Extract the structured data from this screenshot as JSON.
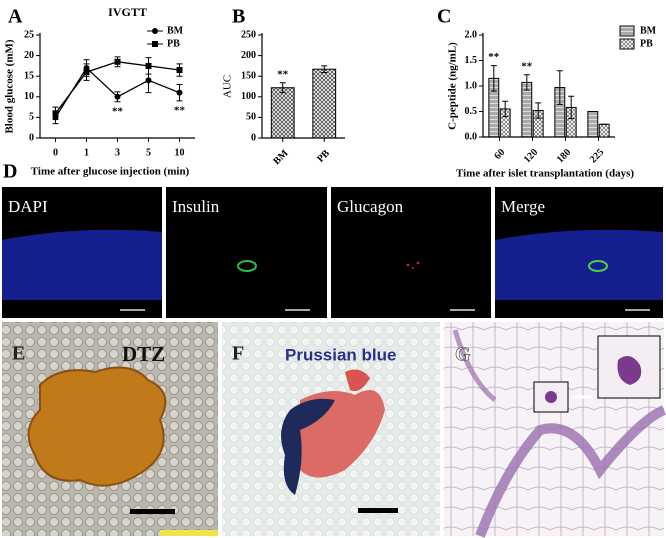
{
  "chart_data": [
    {
      "type": "line",
      "title": "IVGTT",
      "y_label": "Blood glucose (mM)",
      "x_label": "Time after glucose injection (min)",
      "categories": [
        "0",
        "1",
        "3",
        "5",
        "10"
      ],
      "series": [
        {
          "name": "BM",
          "color": "#000000",
          "marker": "circle",
          "values": [
            5,
            17,
            10,
            14,
            11
          ],
          "error": [
            1.5,
            2,
            1.2,
            3,
            2
          ]
        },
        {
          "name": "PB",
          "color": "#000000",
          "marker": "square",
          "values": [
            6,
            16,
            18.5,
            17.5,
            16.5
          ],
          "error": [
            1.5,
            2,
            1.2,
            2,
            1.5
          ]
        }
      ],
      "annotations": [
        {
          "text": "**",
          "category": "3"
        },
        {
          "text": "**",
          "category": "10"
        }
      ],
      "ylim": [
        0,
        25
      ],
      "yticks": [
        0,
        5,
        10,
        15,
        20,
        25
      ],
      "legend": "upper right"
    },
    {
      "type": "bar",
      "y_label": "AUC",
      "categories": [
        "BM",
        "PB"
      ],
      "values": [
        122,
        167
      ],
      "error": [
        12,
        8
      ],
      "color": "#000000",
      "annotations": [
        {
          "text": "**",
          "category": "BM"
        }
      ],
      "ylim": [
        0,
        250
      ],
      "yticks": [
        0,
        50,
        100,
        150,
        200,
        250
      ]
    },
    {
      "type": "bar",
      "y_label": "C-peptide (ng/mL)",
      "x_label": "Time after islet transplantation (days)",
      "categories": [
        "60",
        "120",
        "180",
        "225"
      ],
      "series": [
        {
          "name": "BM",
          "color": "#000000",
          "values": [
            1.15,
            1.07,
            0.97,
            0.5
          ],
          "error": [
            0.25,
            0.15,
            0.33,
            0
          ]
        },
        {
          "name": "PB",
          "color": "#000000",
          "values": [
            0.55,
            0.52,
            0.58,
            0.25
          ],
          "error": [
            0.15,
            0.15,
            0.22,
            0
          ]
        }
      ],
      "annotations": [
        {
          "text": "**",
          "category": "60"
        },
        {
          "text": "**",
          "category": "120"
        }
      ],
      "ylim": [
        0,
        2
      ],
      "yticks": [
        {
          "value": 0,
          "label": "0.0"
        },
        {
          "value": 0.5,
          "label": "0.5"
        },
        {
          "value": 1,
          "label": "1.0"
        },
        {
          "value": 1.5,
          "label": "1.5"
        },
        {
          "value": 2,
          "label": "2.0"
        }
      ],
      "legend": "upper right"
    }
  ],
  "figure": {
    "panel_letters": [
      "A",
      "B",
      "C",
      "D",
      "E",
      "F",
      "G"
    ],
    "d_channels": [
      "DAPI",
      "Insulin",
      "Glucagon",
      "Merge"
    ],
    "e_label": "DTZ",
    "f_label": "Prussian blue"
  }
}
